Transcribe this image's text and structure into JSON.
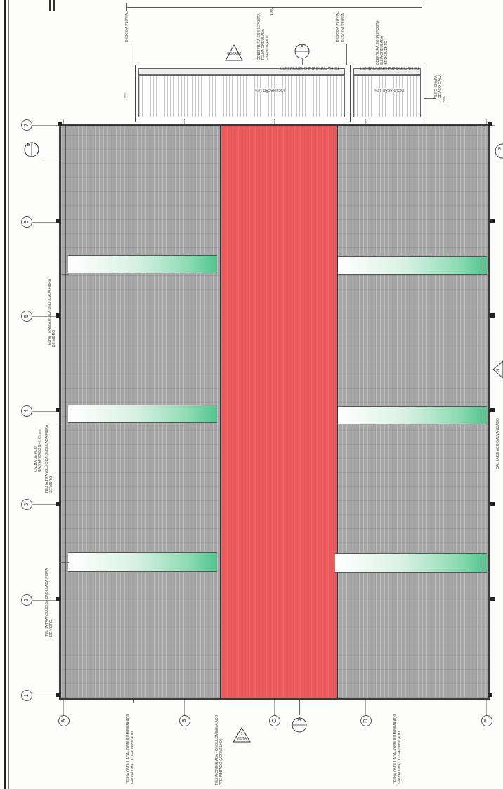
{
  "title_block": {
    "dimension_top": "1000",
    "dimension_side": "320",
    "lbl_descida_1": "DESCIDA PLUVIAL",
    "lbl_descida_2": "DESCIDA PLUVIAL",
    "lbl_descida_3": "DESCIDA PLUVIAL",
    "lbl_cobertura_1": "COBERTURA SOBREPOSTA TELHA ONDULADA FIBROCIMENTO",
    "lbl_cobertura_2": "COBERTURA SOBREPOSTA TELHA ONDULADA FIBROCIMENTO",
    "lbl_canopy_1": "TELHA ONDULADA FIBROCIMENTO",
    "lbl_canopy_2": "TELHA ONDULADA FIBROCIMENTO",
    "lbl_slope_1": "INCLINAÇÃO 10%",
    "lbl_slope_2": "INCLINAÇÃO 10%",
    "lbl_rufo": "RUFO CHAPA DE AÇO GALV.",
    "lbl_320": "320",
    "vista_label": "VISTA 02",
    "vista_top": "A",
    "section_b": "B",
    "section_b_right": "B"
  },
  "grid_rows": [
    "7",
    "6",
    "5",
    "4",
    "3",
    "2",
    "1"
  ],
  "grid_cols": [
    "A",
    "B",
    "C",
    "D",
    "E"
  ],
  "annotations": {
    "telha_transl_1": "TELHA TRANSLÚCIDA ONDULADA FIBRA DE VIDRO",
    "calha": "CALHA DE AÇO GALVANIZADO E=0,65mm",
    "telha_transl_2": "TELHA TRANSLÚCIDA ONDULADA FIBRA DE VIDRO",
    "telha_transl_3": "TELHA TRANSLÚCIDA ONDULADA FIBRA DE VIDRO",
    "bottom_left": "TELHA ONDULADA - ONDULOMINIMA AÇO GALVALUME OU GALVANIZADO",
    "bottom_mid": "TELHA ONDULADA - ONDULOMINIMA AÇO PRE-PINTADO (VERMELHO)",
    "bottom_right": "TELHA ONDULADA - ONDULOMINIMA AÇO GALVALUME OU GALVANIZADO",
    "vista_bottom_top": "1",
    "vista_bottom_bot": "VISTA",
    "section_a_bottom": "A",
    "vista_right": "01",
    "calha_right": "CALHA DE AÇO GALVANIZADO"
  },
  "colors": {
    "roof_grey": "#a6a6a6",
    "roof_red": "#ea5a5a",
    "translucent_green": "#52c58f",
    "line": "#333333"
  }
}
